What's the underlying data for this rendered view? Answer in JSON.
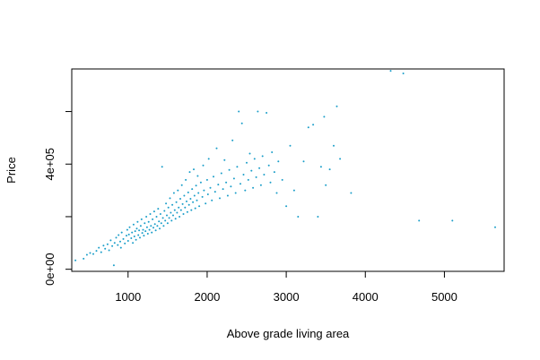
{
  "chart_data": {
    "type": "scatter",
    "title": "",
    "xlabel": "Above grade living area",
    "ylabel": "Price",
    "xlim": [
      288,
      5755
    ],
    "ylim": [
      -8000,
      762000
    ],
    "xticks": [
      1000,
      2000,
      3000,
      4000,
      5000
    ],
    "xtick_labels": [
      "1000",
      "2000",
      "3000",
      "4000",
      "5000"
    ],
    "yticks": [
      0,
      200000,
      400000,
      600000
    ],
    "ytick_labels": [
      "0e+00",
      "",
      "4e+05",
      ""
    ],
    "grid": false,
    "legend": "none",
    "point_color": "#1a9ec9",
    "series": [
      {
        "points": [
          [
            334,
            34000
          ],
          [
            438,
            40000
          ],
          [
            480,
            55000
          ],
          [
            520,
            62000
          ],
          [
            560,
            58000
          ],
          [
            600,
            70000
          ],
          [
            630,
            82000
          ],
          [
            660,
            65000
          ],
          [
            690,
            90000
          ],
          [
            710,
            78000
          ],
          [
            740,
            95000
          ],
          [
            760,
            72000
          ],
          [
            780,
            110000
          ],
          [
            800,
            88000
          ],
          [
            820,
            15000
          ],
          [
            830,
            100000
          ],
          [
            850,
            120000
          ],
          [
            870,
            92000
          ],
          [
            880,
            130000
          ],
          [
            900,
            105000
          ],
          [
            910,
            82000
          ],
          [
            920,
            140000
          ],
          [
            940,
            115000
          ],
          [
            960,
            98000
          ],
          [
            980,
            128000
          ],
          [
            990,
            150000
          ],
          [
            1000,
            108000
          ],
          [
            1010,
            132000
          ],
          [
            1020,
            160000
          ],
          [
            1040,
            118000
          ],
          [
            1050,
            140000
          ],
          [
            1060,
            100000
          ],
          [
            1070,
            170000
          ],
          [
            1080,
            125000
          ],
          [
            1090,
            145000
          ],
          [
            1100,
            112000
          ],
          [
            1110,
            155000
          ],
          [
            1120,
            180000
          ],
          [
            1130,
            130000
          ],
          [
            1140,
            148000
          ],
          [
            1150,
            120000
          ],
          [
            1160,
            165000
          ],
          [
            1170,
            190000
          ],
          [
            1180,
            138000
          ],
          [
            1190,
            150000
          ],
          [
            1200,
            128000
          ],
          [
            1210,
            175000
          ],
          [
            1220,
            145000
          ],
          [
            1230,
            200000
          ],
          [
            1240,
            160000
          ],
          [
            1250,
            135000
          ],
          [
            1260,
            180000
          ],
          [
            1270,
            150000
          ],
          [
            1280,
            210000
          ],
          [
            1290,
            165000
          ],
          [
            1300,
            140000
          ],
          [
            1310,
            190000
          ],
          [
            1320,
            158000
          ],
          [
            1330,
            220000
          ],
          [
            1340,
            172000
          ],
          [
            1350,
            148000
          ],
          [
            1360,
            200000
          ],
          [
            1370,
            165000
          ],
          [
            1380,
            230000
          ],
          [
            1390,
            182000
          ],
          [
            1400,
            155000
          ],
          [
            1410,
            210000
          ],
          [
            1420,
            175000
          ],
          [
            1430,
            390000
          ],
          [
            1440,
            195000
          ],
          [
            1450,
            165000
          ],
          [
            1460,
            222000
          ],
          [
            1470,
            185000
          ],
          [
            1480,
            250000
          ],
          [
            1490,
            205000
          ],
          [
            1500,
            175000
          ],
          [
            1510,
            235000
          ],
          [
            1520,
            195000
          ],
          [
            1530,
            270000
          ],
          [
            1540,
            215000
          ],
          [
            1550,
            185000
          ],
          [
            1560,
            245000
          ],
          [
            1570,
            205000
          ],
          [
            1580,
            290000
          ],
          [
            1590,
            225000
          ],
          [
            1600,
            192000
          ],
          [
            1610,
            255000
          ],
          [
            1620,
            215000
          ],
          [
            1630,
            300000
          ],
          [
            1640,
            235000
          ],
          [
            1650,
            200000
          ],
          [
            1660,
            268000
          ],
          [
            1670,
            225000
          ],
          [
            1680,
            320000
          ],
          [
            1690,
            248000
          ],
          [
            1700,
            210000
          ],
          [
            1710,
            280000
          ],
          [
            1720,
            235000
          ],
          [
            1730,
            340000
          ],
          [
            1740,
            258000
          ],
          [
            1750,
            218000
          ],
          [
            1760,
            292000
          ],
          [
            1770,
            245000
          ],
          [
            1780,
            370000
          ],
          [
            1790,
            268000
          ],
          [
            1800,
            225000
          ],
          [
            1810,
            305000
          ],
          [
            1820,
            255000
          ],
          [
            1830,
            380000
          ],
          [
            1840,
            280000
          ],
          [
            1850,
            232000
          ],
          [
            1860,
            318000
          ],
          [
            1870,
            262000
          ],
          [
            1880,
            355000
          ],
          [
            1890,
            290000
          ],
          [
            1900,
            240000
          ],
          [
            1920,
            330000
          ],
          [
            1940,
            275000
          ],
          [
            1950,
            395000
          ],
          [
            1960,
            300000
          ],
          [
            1980,
            250000
          ],
          [
            2000,
            340000
          ],
          [
            2010,
            285000
          ],
          [
            2020,
            420000
          ],
          [
            2040,
            310000
          ],
          [
            2060,
            262000
          ],
          [
            2080,
            352000
          ],
          [
            2100,
            295000
          ],
          [
            2120,
            460000
          ],
          [
            2140,
            322000
          ],
          [
            2160,
            270000
          ],
          [
            2180,
            365000
          ],
          [
            2200,
            305000
          ],
          [
            2220,
            415000
          ],
          [
            2240,
            330000
          ],
          [
            2260,
            280000
          ],
          [
            2280,
            378000
          ],
          [
            2300,
            315000
          ],
          [
            2320,
            490000
          ],
          [
            2340,
            345000
          ],
          [
            2360,
            290000
          ],
          [
            2380,
            390000
          ],
          [
            2400,
            600000
          ],
          [
            2420,
            325000
          ],
          [
            2440,
            555000
          ],
          [
            2460,
            360000
          ],
          [
            2480,
            300000
          ],
          [
            2500,
            405000
          ],
          [
            2520,
            340000
          ],
          [
            2540,
            440000
          ],
          [
            2560,
            375000
          ],
          [
            2580,
            310000
          ],
          [
            2600,
            420000
          ],
          [
            2620,
            350000
          ],
          [
            2640,
            600000
          ],
          [
            2660,
            385000
          ],
          [
            2680,
            320000
          ],
          [
            2700,
            430000
          ],
          [
            2720,
            360000
          ],
          [
            2750,
            595000
          ],
          [
            2780,
            395000
          ],
          [
            2800,
            330000
          ],
          [
            2820,
            445000
          ],
          [
            2850,
            370000
          ],
          [
            2880,
            290000
          ],
          [
            2900,
            410000
          ],
          [
            2950,
            340000
          ],
          [
            3000,
            240000
          ],
          [
            3050,
            470000
          ],
          [
            3100,
            300000
          ],
          [
            3150,
            200000
          ],
          [
            3220,
            410000
          ],
          [
            3280,
            540000
          ],
          [
            3340,
            550000
          ],
          [
            3400,
            200000
          ],
          [
            3440,
            390000
          ],
          [
            3480,
            580000
          ],
          [
            3500,
            320000
          ],
          [
            3550,
            380000
          ],
          [
            3600,
            470000
          ],
          [
            3640,
            620000
          ],
          [
            3680,
            420000
          ],
          [
            3820,
            290000
          ],
          [
            4320,
            755000
          ],
          [
            4480,
            745000
          ],
          [
            4680,
            185000
          ],
          [
            5100,
            185000
          ],
          [
            5642,
            160000
          ]
        ]
      }
    ]
  }
}
